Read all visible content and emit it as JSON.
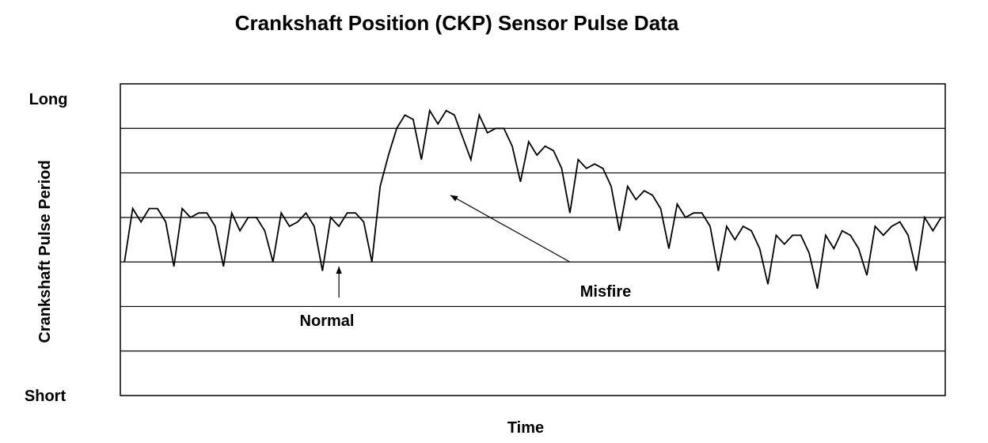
{
  "chart_data": {
    "type": "line",
    "title": "Crankshaft Position (CKP) Sensor Pulse Data",
    "xlabel": "Time",
    "ylabel": "Crankshaft Pulse Period",
    "y_top_label": "Long",
    "y_bottom_label": "Short",
    "ylim": [
      0,
      7
    ],
    "xlim": [
      0,
      100
    ],
    "grid": true,
    "gridlines": [
      1,
      2,
      3,
      4,
      5,
      6
    ],
    "annotations": [
      {
        "text": "Normal",
        "arrow_from": [
          26.5,
          2.2
        ],
        "arrow_to": [
          26.5,
          2.9
        ]
      },
      {
        "text": "Misfire",
        "arrow_from": [
          54.5,
          3.0
        ],
        "arrow_to": [
          40.0,
          4.5
        ]
      }
    ],
    "series": [
      {
        "points": [
          [
            0.5,
            3.0
          ],
          [
            1.5,
            4.2
          ],
          [
            2.5,
            3.9
          ],
          [
            3.5,
            4.2
          ],
          [
            4.5,
            4.2
          ],
          [
            5.5,
            3.9
          ],
          [
            6.5,
            2.9
          ],
          [
            7.5,
            4.2
          ],
          [
            8.5,
            4.0
          ],
          [
            9.5,
            4.1
          ],
          [
            10.5,
            4.1
          ],
          [
            11.5,
            3.8
          ],
          [
            12.5,
            2.9
          ],
          [
            13.5,
            4.1
          ],
          [
            14.5,
            3.7
          ],
          [
            15.5,
            4.0
          ],
          [
            16.5,
            4.0
          ],
          [
            17.5,
            3.7
          ],
          [
            18.5,
            3.0
          ],
          [
            19.5,
            4.1
          ],
          [
            20.5,
            3.8
          ],
          [
            21.5,
            3.9
          ],
          [
            22.5,
            4.1
          ],
          [
            23.5,
            3.8
          ],
          [
            24.5,
            2.8
          ],
          [
            25.5,
            4.0
          ],
          [
            26.5,
            3.8
          ],
          [
            27.5,
            4.1
          ],
          [
            28.5,
            4.1
          ],
          [
            29.5,
            3.9
          ],
          [
            30.5,
            3.0
          ],
          [
            31.5,
            4.7
          ],
          [
            32.5,
            5.4
          ],
          [
            33.5,
            6.0
          ],
          [
            34.5,
            6.3
          ],
          [
            35.5,
            6.2
          ],
          [
            36.5,
            5.3
          ],
          [
            37.5,
            6.4
          ],
          [
            38.5,
            6.1
          ],
          [
            39.5,
            6.4
          ],
          [
            40.5,
            6.3
          ],
          [
            41.5,
            5.8
          ],
          [
            42.5,
            5.3
          ],
          [
            43.5,
            6.3
          ],
          [
            44.5,
            5.9
          ],
          [
            45.5,
            6.0
          ],
          [
            46.5,
            6.0
          ],
          [
            47.5,
            5.6
          ],
          [
            48.5,
            4.8
          ],
          [
            49.5,
            5.7
          ],
          [
            50.5,
            5.4
          ],
          [
            51.5,
            5.6
          ],
          [
            52.5,
            5.5
          ],
          [
            53.5,
            5.1
          ],
          [
            54.5,
            4.1
          ],
          [
            55.5,
            5.3
          ],
          [
            56.5,
            5.1
          ],
          [
            57.5,
            5.2
          ],
          [
            58.5,
            5.1
          ],
          [
            59.5,
            4.7
          ],
          [
            60.5,
            3.7
          ],
          [
            61.5,
            4.7
          ],
          [
            62.5,
            4.4
          ],
          [
            63.5,
            4.6
          ],
          [
            64.5,
            4.5
          ],
          [
            65.5,
            4.2
          ],
          [
            66.5,
            3.3
          ],
          [
            67.5,
            4.3
          ],
          [
            68.5,
            4.0
          ],
          [
            69.5,
            4.1
          ],
          [
            70.5,
            4.1
          ],
          [
            71.5,
            3.8
          ],
          [
            72.5,
            2.8
          ],
          [
            73.5,
            3.8
          ],
          [
            74.5,
            3.5
          ],
          [
            75.5,
            3.8
          ],
          [
            76.5,
            3.7
          ],
          [
            77.5,
            3.3
          ],
          [
            78.5,
            2.5
          ],
          [
            79.5,
            3.6
          ],
          [
            80.5,
            3.4
          ],
          [
            81.5,
            3.6
          ],
          [
            82.5,
            3.6
          ],
          [
            83.5,
            3.2
          ],
          [
            84.5,
            2.4
          ],
          [
            85.5,
            3.6
          ],
          [
            86.5,
            3.3
          ],
          [
            87.5,
            3.7
          ],
          [
            88.5,
            3.6
          ],
          [
            89.5,
            3.3
          ],
          [
            90.5,
            2.7
          ],
          [
            91.5,
            3.8
          ],
          [
            92.5,
            3.6
          ],
          [
            93.5,
            3.8
          ],
          [
            94.5,
            3.9
          ],
          [
            95.5,
            3.6
          ],
          [
            96.5,
            2.8
          ],
          [
            97.5,
            4.0
          ],
          [
            98.5,
            3.7
          ],
          [
            99.5,
            4.0
          ]
        ]
      }
    ]
  }
}
